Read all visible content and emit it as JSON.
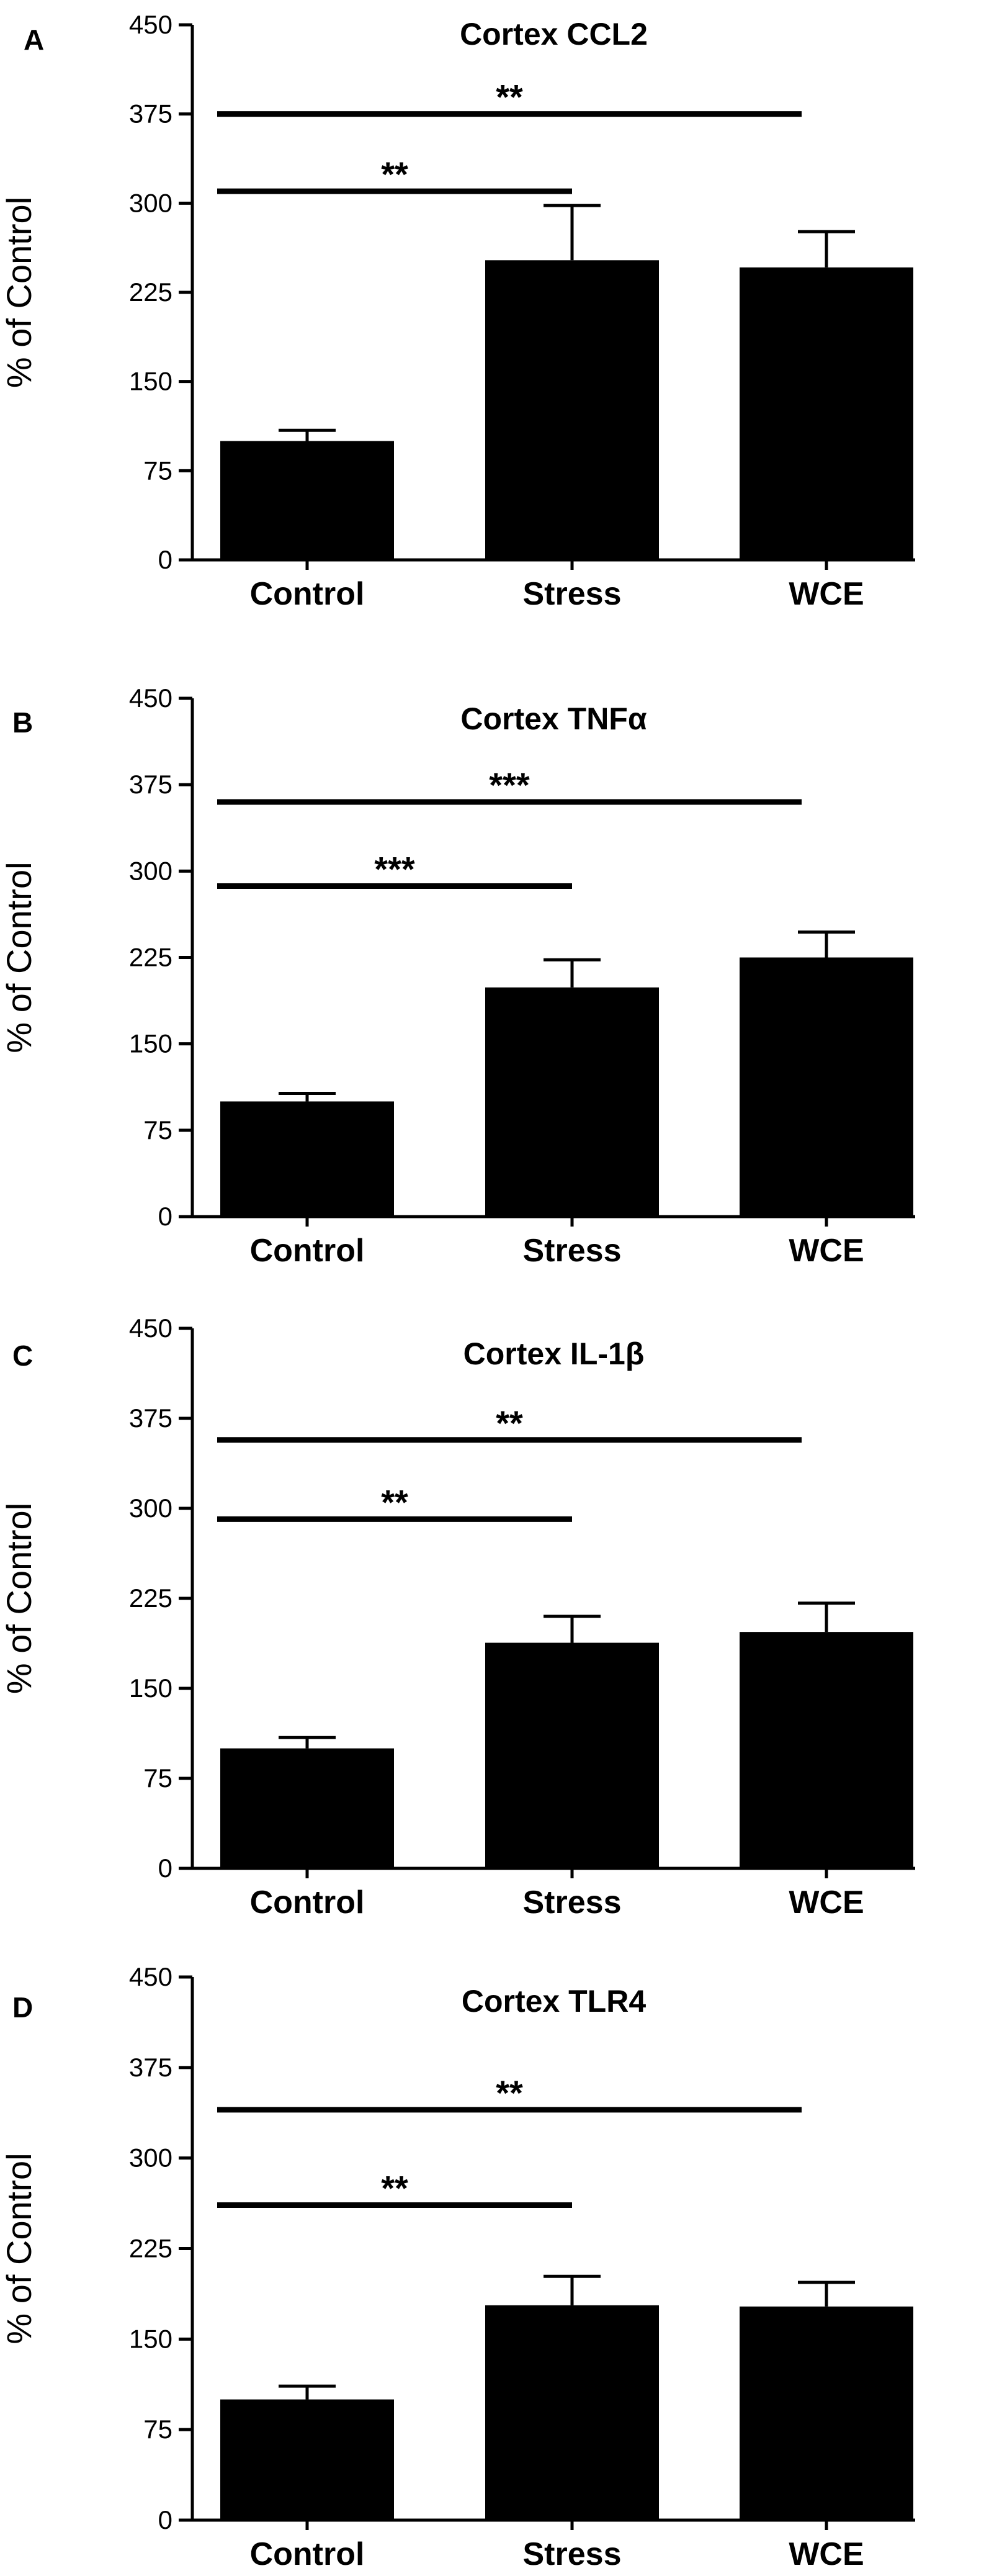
{
  "chart_data": [
    {
      "type": "bar",
      "panel_label": "A",
      "title": "Cortex CCL2",
      "ylabel": "% of Control",
      "xlabel": "",
      "ylim": [
        0,
        450
      ],
      "yticks": [
        0,
        75,
        150,
        225,
        300,
        375,
        450
      ],
      "categories": [
        "Control",
        "Stress",
        "WCE"
      ],
      "values": [
        100,
        252,
        246
      ],
      "errors": [
        9,
        46,
        30
      ],
      "grid": false,
      "significance": [
        {
          "from": 0,
          "to": 1,
          "label": "**",
          "y": 310
        },
        {
          "from": 0,
          "to": 2,
          "label": "**",
          "y": 375
        }
      ]
    },
    {
      "type": "bar",
      "panel_label": "B",
      "title": "Cortex TNFα",
      "ylabel": "% of Control",
      "xlabel": "",
      "ylim": [
        0,
        450
      ],
      "yticks": [
        0,
        75,
        150,
        225,
        300,
        375,
        450
      ],
      "categories": [
        "Control",
        "Stress",
        "WCE"
      ],
      "values": [
        100,
        199,
        225
      ],
      "errors": [
        7,
        24,
        22
      ],
      "grid": false,
      "significance": [
        {
          "from": 0,
          "to": 1,
          "label": "***",
          "y": 287
        },
        {
          "from": 0,
          "to": 2,
          "label": "***",
          "y": 360
        }
      ]
    },
    {
      "type": "bar",
      "panel_label": "C",
      "title": "Cortex IL-1β",
      "ylabel": "% of Control",
      "xlabel": "",
      "ylim": [
        0,
        450
      ],
      "yticks": [
        0,
        75,
        150,
        225,
        300,
        375,
        450
      ],
      "categories": [
        "Control",
        "Stress",
        "WCE"
      ],
      "values": [
        100,
        188,
        197
      ],
      "errors": [
        9,
        22,
        24
      ],
      "grid": false,
      "significance": [
        {
          "from": 0,
          "to": 1,
          "label": "**",
          "y": 291
        },
        {
          "from": 0,
          "to": 2,
          "label": "**",
          "y": 357
        }
      ]
    },
    {
      "type": "bar",
      "panel_label": "D",
      "title": "Cortex TLR4",
      "ylabel": "% of Control",
      "xlabel": "",
      "ylim": [
        0,
        450
      ],
      "yticks": [
        0,
        75,
        150,
        225,
        300,
        375,
        450
      ],
      "categories": [
        "Control",
        "Stress",
        "WCE"
      ],
      "values": [
        100,
        178,
        177
      ],
      "errors": [
        11,
        24,
        20
      ],
      "grid": false,
      "significance": [
        {
          "from": 0,
          "to": 1,
          "label": "**",
          "y": 261
        },
        {
          "from": 0,
          "to": 2,
          "label": "**",
          "y": 340
        }
      ]
    }
  ]
}
